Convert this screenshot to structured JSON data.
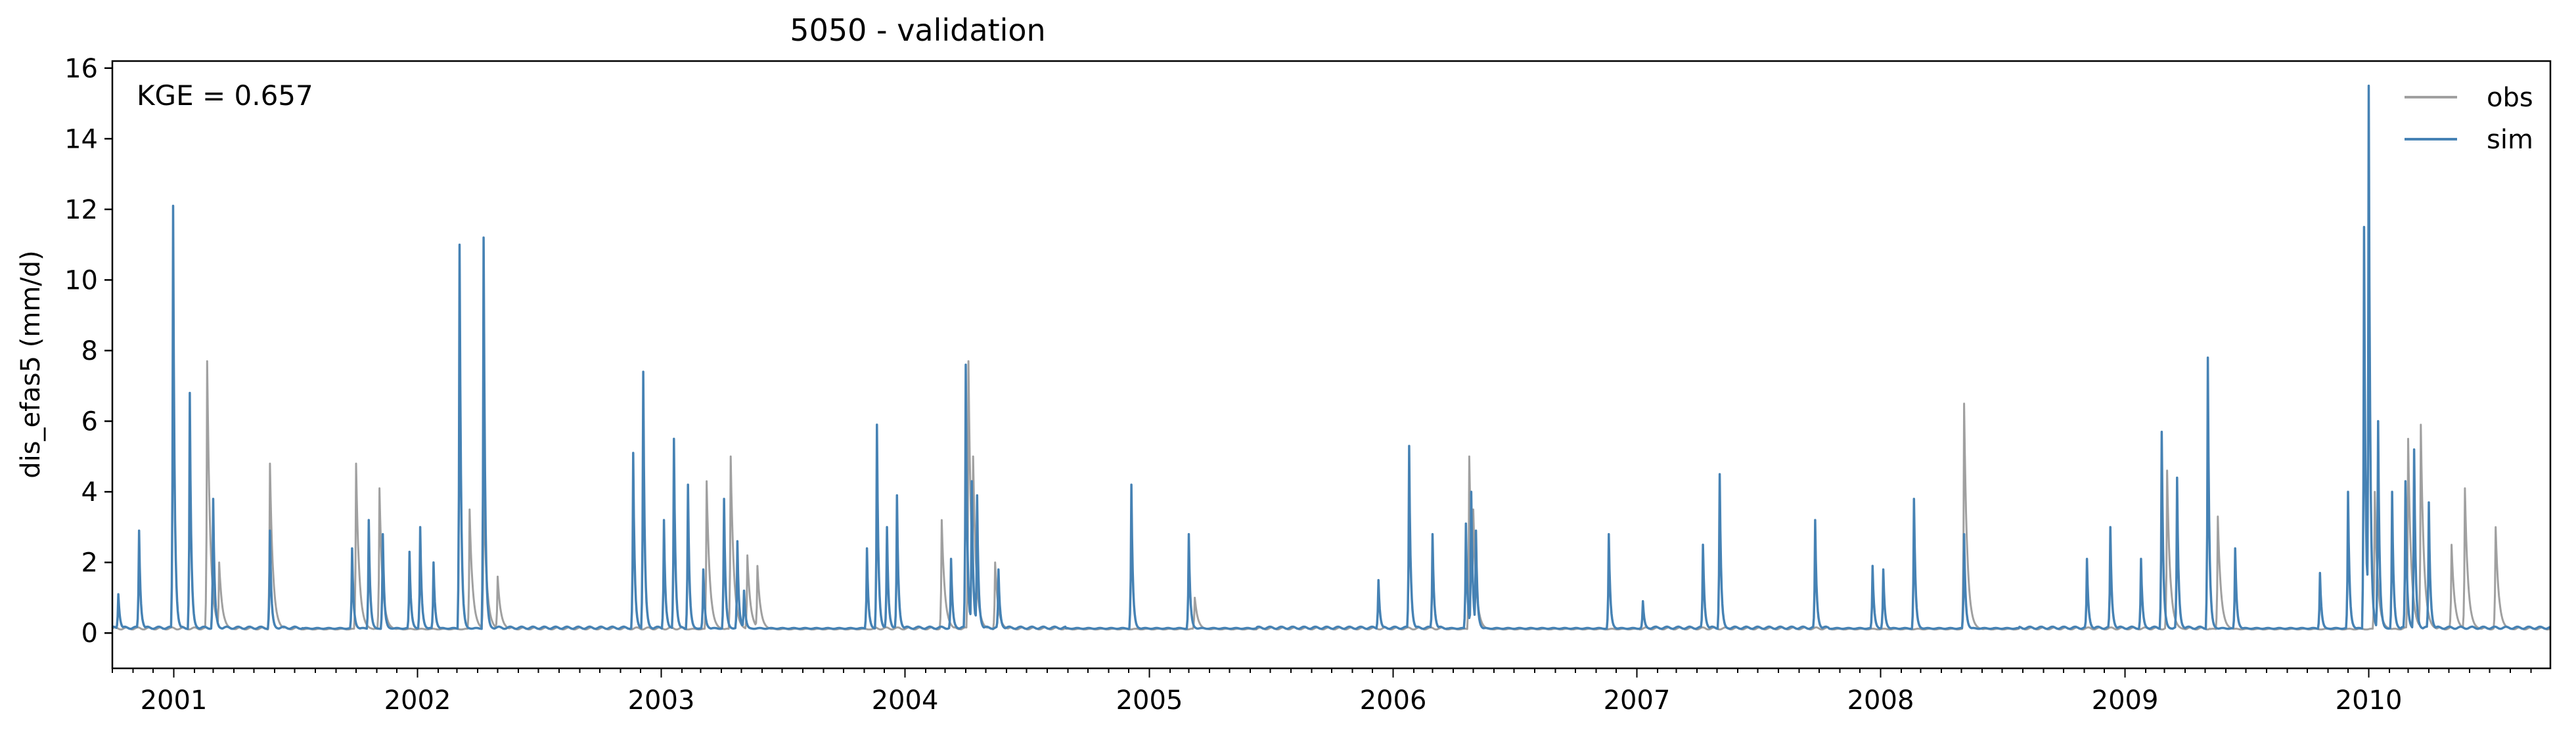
{
  "chart_data": {
    "type": "line",
    "title": "5050 - validation",
    "xlabel": "",
    "ylabel": "dis_efas5 (mm/d)",
    "xlim": [
      "2000-10-01",
      "2010-09-30"
    ],
    "ylim": [
      -1,
      16.2
    ],
    "yticks": [
      0,
      2,
      4,
      6,
      8,
      10,
      12,
      14,
      16
    ],
    "ytick_labels": [
      "0",
      "2",
      "4",
      "6",
      "8",
      "10",
      "12",
      "14",
      "16"
    ],
    "xticks": [
      "2001-01-01",
      "2002-01-01",
      "2003-01-01",
      "2004-01-01",
      "2005-01-01",
      "2006-01-01",
      "2007-01-01",
      "2008-01-01",
      "2009-01-01",
      "2010-01-01"
    ],
    "xtick_labels": [
      "2001",
      "2002",
      "2003",
      "2004",
      "2005",
      "2006",
      "2007",
      "2008",
      "2009",
      "2010"
    ],
    "annotation": "KGE = 0.657",
    "legend": {
      "placement": "top-right",
      "entries": [
        "obs",
        "sim"
      ]
    },
    "grid": false,
    "series": [
      {
        "name": "obs",
        "color": "#a0a0a0",
        "baseline": 0.1,
        "peaks": [
          [
            "2001-02-20",
            7.7
          ],
          [
            "2001-03-10",
            2.0
          ],
          [
            "2001-05-25",
            4.8
          ],
          [
            "2001-10-01",
            4.8
          ],
          [
            "2001-11-05",
            4.1
          ],
          [
            "2002-03-20",
            3.5
          ],
          [
            "2002-04-10",
            4.1
          ],
          [
            "2002-05-01",
            1.6
          ],
          [
            "2003-03-10",
            4.3
          ],
          [
            "2003-04-15",
            5.0
          ],
          [
            "2003-05-10",
            2.2
          ],
          [
            "2003-05-25",
            1.9
          ],
          [
            "2004-04-05",
            7.7
          ],
          [
            "2004-04-12",
            5.0
          ],
          [
            "2004-05-15",
            2.0
          ],
          [
            "2004-02-25",
            3.2
          ],
          [
            "2005-03-10",
            1.0
          ],
          [
            "2006-04-25",
            5.0
          ],
          [
            "2006-05-01",
            3.5
          ],
          [
            "2008-05-05",
            6.5
          ],
          [
            "2009-03-05",
            4.6
          ],
          [
            "2009-05-20",
            3.3
          ],
          [
            "2010-01-10",
            4.0
          ],
          [
            "2010-03-01",
            5.5
          ],
          [
            "2010-03-20",
            5.9
          ],
          [
            "2010-05-05",
            2.5
          ],
          [
            "2010-05-25",
            4.1
          ],
          [
            "2010-07-10",
            3.0
          ]
        ]
      },
      {
        "name": "sim",
        "color": "#4682b4",
        "baseline": 0.12,
        "peaks": [
          [
            "2000-10-10",
            1.1
          ],
          [
            "2000-11-10",
            2.9
          ],
          [
            "2000-12-31",
            12.1
          ],
          [
            "2001-01-25",
            6.8
          ],
          [
            "2001-03-01",
            3.8
          ],
          [
            "2001-05-25",
            2.9
          ],
          [
            "2001-09-25",
            2.4
          ],
          [
            "2001-10-20",
            3.2
          ],
          [
            "2001-11-10",
            2.8
          ],
          [
            "2001-12-20",
            2.3
          ],
          [
            "2002-01-05",
            3.0
          ],
          [
            "2002-01-25",
            2.0
          ],
          [
            "2002-03-05",
            11.0
          ],
          [
            "2002-04-10",
            11.2
          ],
          [
            "2002-11-20",
            5.1
          ],
          [
            "2002-12-05",
            7.4
          ],
          [
            "2003-01-05",
            3.2
          ],
          [
            "2003-01-20",
            5.5
          ],
          [
            "2003-02-10",
            4.2
          ],
          [
            "2003-03-05",
            1.8
          ],
          [
            "2003-04-05",
            3.8
          ],
          [
            "2003-04-25",
            2.6
          ],
          [
            "2003-05-05",
            1.2
          ],
          [
            "2003-11-05",
            2.4
          ],
          [
            "2003-11-20",
            5.9
          ],
          [
            "2003-12-05",
            3.0
          ],
          [
            "2003-12-20",
            3.9
          ],
          [
            "2004-03-10",
            2.1
          ],
          [
            "2004-04-01",
            7.6
          ],
          [
            "2004-04-10",
            4.3
          ],
          [
            "2004-04-18",
            3.9
          ],
          [
            "2004-05-20",
            1.8
          ],
          [
            "2004-12-05",
            4.2
          ],
          [
            "2005-03-01",
            2.8
          ],
          [
            "2005-12-10",
            1.5
          ],
          [
            "2006-01-25",
            5.3
          ],
          [
            "2006-03-01",
            2.8
          ],
          [
            "2006-04-20",
            3.1
          ],
          [
            "2006-04-28",
            4.0
          ],
          [
            "2006-05-05",
            2.9
          ],
          [
            "2006-11-20",
            2.8
          ],
          [
            "2007-01-10",
            0.9
          ],
          [
            "2007-04-10",
            2.5
          ],
          [
            "2007-05-05",
            4.5
          ],
          [
            "2007-09-25",
            3.2
          ],
          [
            "2007-12-20",
            1.9
          ],
          [
            "2008-01-05",
            1.8
          ],
          [
            "2008-02-20",
            3.8
          ],
          [
            "2008-05-05",
            2.8
          ],
          [
            "2008-11-05",
            2.1
          ],
          [
            "2008-12-10",
            3.0
          ],
          [
            "2009-01-25",
            2.1
          ],
          [
            "2009-02-25",
            5.7
          ],
          [
            "2009-03-20",
            4.4
          ],
          [
            "2009-05-05",
            7.8
          ],
          [
            "2009-06-15",
            2.4
          ],
          [
            "2009-10-20",
            1.7
          ],
          [
            "2009-12-01",
            4.0
          ],
          [
            "2009-12-25",
            11.5
          ],
          [
            "2010-01-01",
            15.5
          ],
          [
            "2010-01-15",
            6.0
          ],
          [
            "2010-02-05",
            4.0
          ],
          [
            "2010-02-25",
            4.3
          ],
          [
            "2010-03-10",
            5.2
          ],
          [
            "2010-04-01",
            3.7
          ]
        ]
      }
    ]
  }
}
